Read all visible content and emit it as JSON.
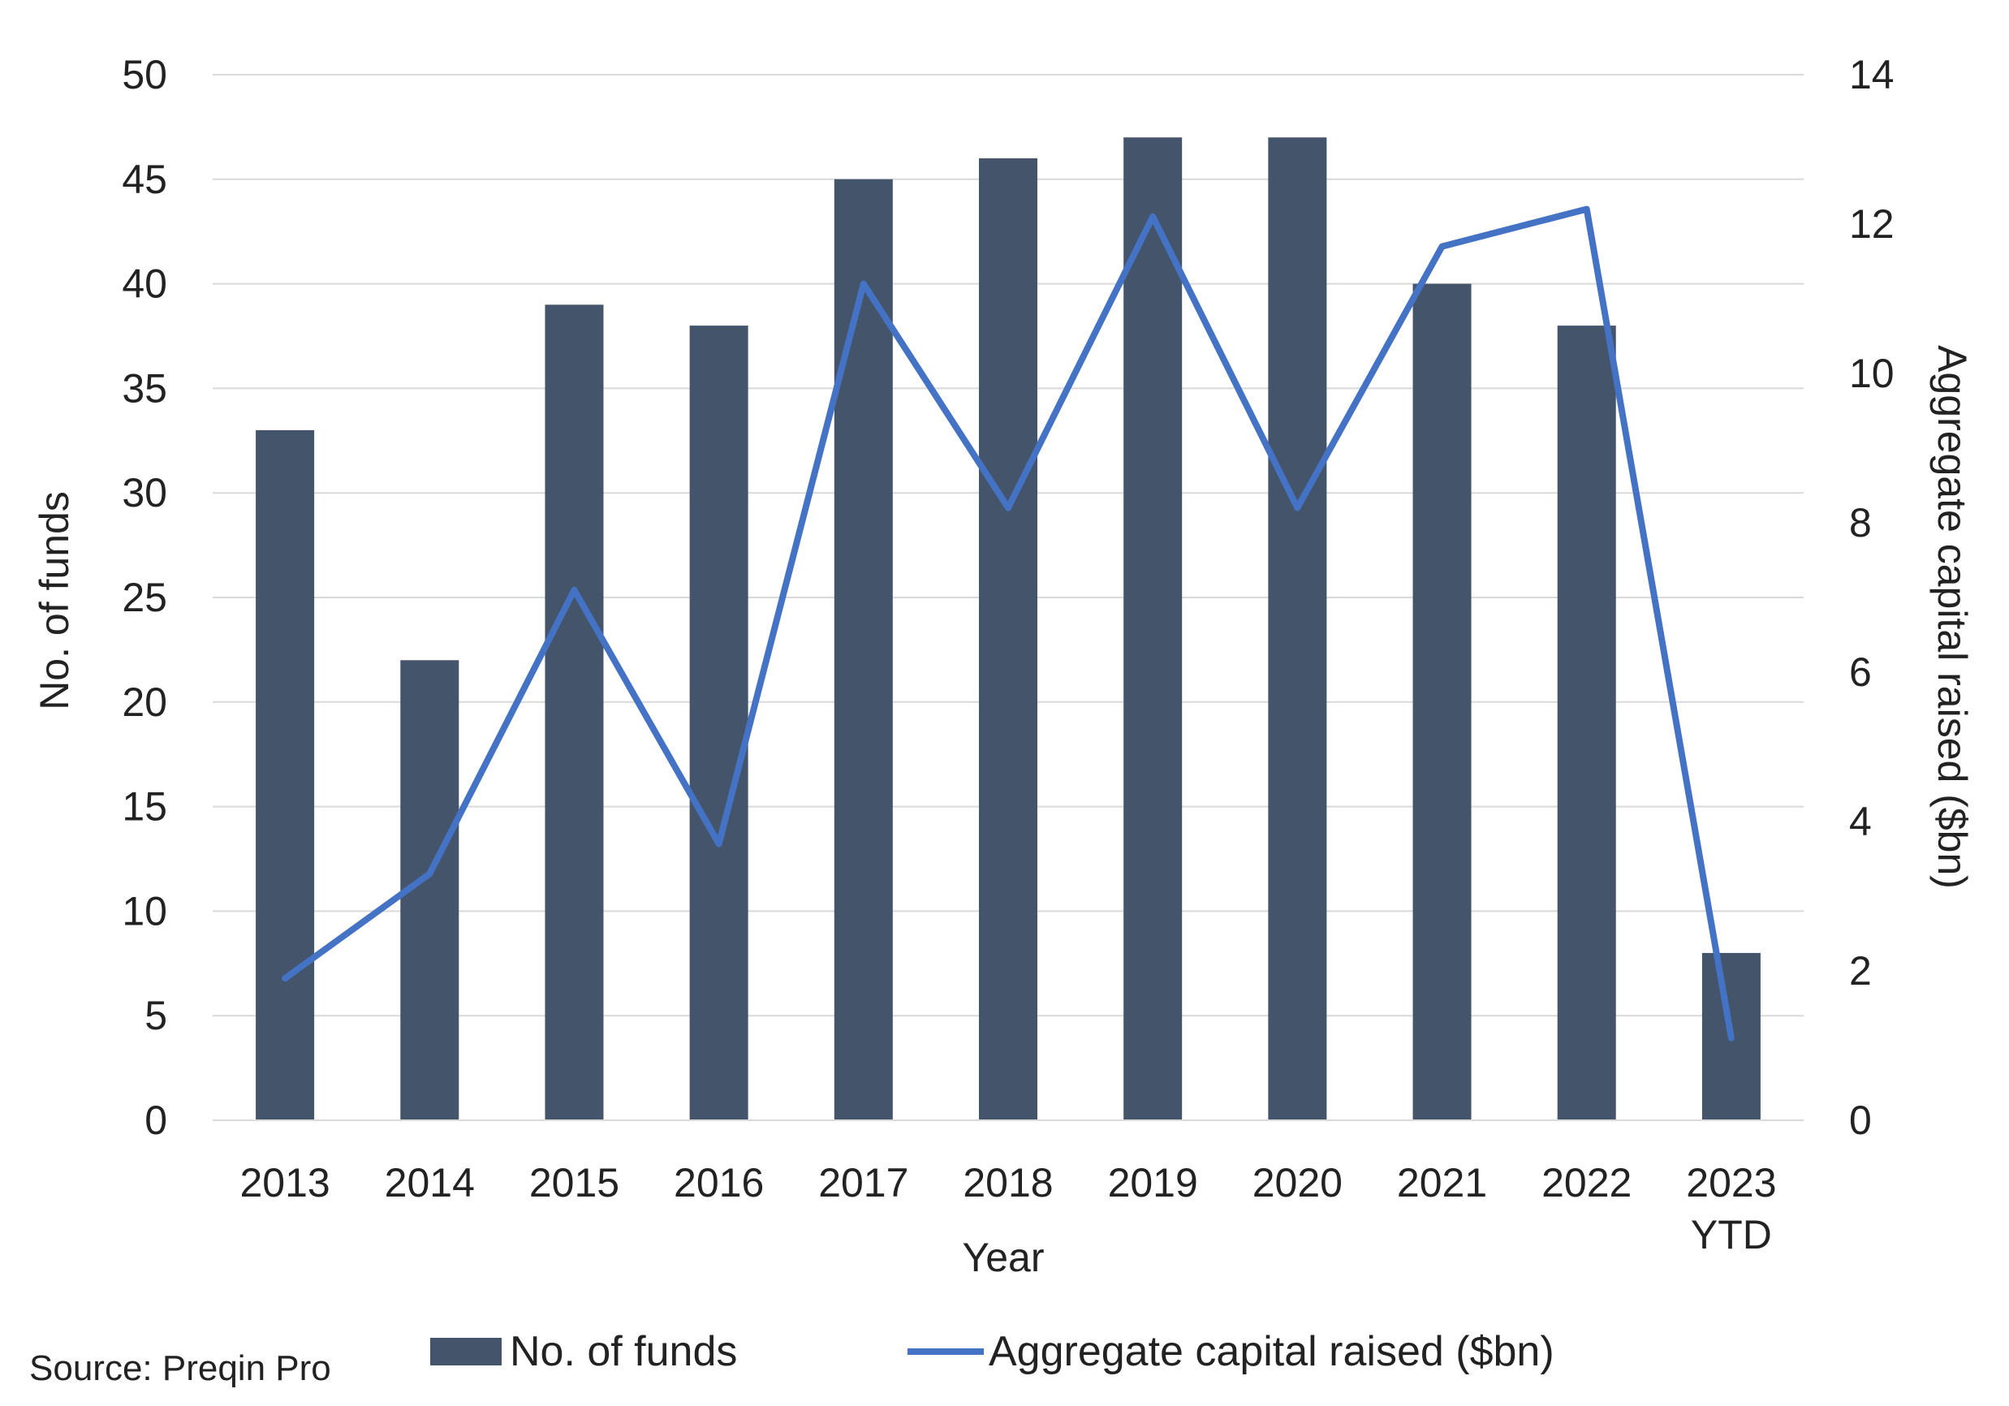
{
  "chart_data": {
    "type": "bar",
    "categories": [
      "2013",
      "2014",
      "2015",
      "2016",
      "2017",
      "2018",
      "2019",
      "2020",
      "2021",
      "2022",
      "2023 YTD"
    ],
    "category_lines": [
      [
        "2013"
      ],
      [
        "2014"
      ],
      [
        "2015"
      ],
      [
        "2016"
      ],
      [
        "2017"
      ],
      [
        "2018"
      ],
      [
        "2019"
      ],
      [
        "2020"
      ],
      [
        "2021"
      ],
      [
        "2022"
      ],
      [
        "2023",
        "YTD"
      ]
    ],
    "series": [
      {
        "name": "No. of funds",
        "type": "bar",
        "axis": "left",
        "color": "#44546A",
        "values": [
          33,
          22,
          39,
          38,
          45,
          46,
          47,
          47,
          40,
          38,
          8
        ]
      },
      {
        "name": "Aggregate capital raised ($bn)",
        "type": "line",
        "axis": "right",
        "color": "#4472C4",
        "values": [
          1.9,
          3.3,
          7.1,
          3.7,
          11.2,
          8.2,
          12.1,
          8.2,
          11.7,
          12.2,
          1.1
        ]
      }
    ],
    "xlabel": "Year",
    "ylabel": "No. of funds",
    "y2label": "Aggregate capital raised ($bn)",
    "ylim": [
      0,
      50
    ],
    "yticks": [
      0,
      5,
      10,
      15,
      20,
      25,
      30,
      35,
      40,
      45,
      50
    ],
    "y2lim": [
      0,
      14
    ],
    "y2ticks": [
      0,
      2,
      4,
      6,
      8,
      10,
      12,
      14
    ],
    "grid": true,
    "legend_position": "bottom"
  },
  "source_text": "Source: Preqin Pro"
}
